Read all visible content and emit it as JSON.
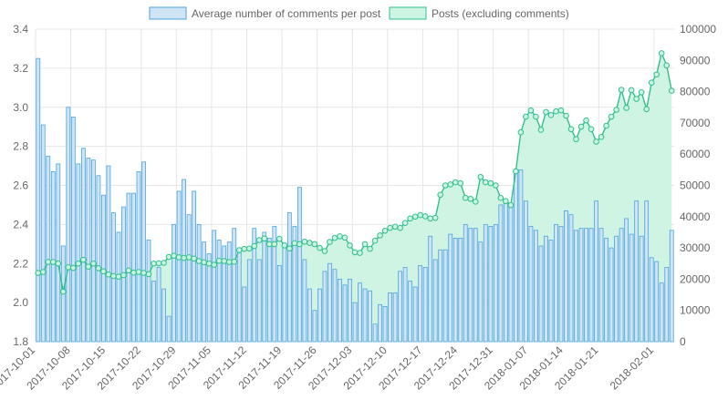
{
  "chart_data": {
    "type": "bar",
    "title": "",
    "xlabel": "",
    "ylabel": "",
    "legend_position": "top",
    "start_date": "2017-10-01",
    "x_tick_labels": [
      "2017-10-01",
      "2017-10-08",
      "2017-10-15",
      "2017-10-22",
      "2017-10-29",
      "2017-11-05",
      "2017-11-12",
      "2017-11-19",
      "2017-11-26",
      "2017-12-03",
      "2017-12-10",
      "2017-12-17",
      "2017-12-24",
      "2017-12-31",
      "2018-01-07",
      "2018-01-14",
      "2018-01-21",
      "2018-02-01"
    ],
    "y_left": {
      "ticks": [
        "1.8",
        "2.0",
        "2.2",
        "2.4",
        "2.6",
        "2.8",
        "3.0",
        "3.2",
        "3.4"
      ],
      "range": [
        1.8,
        3.4
      ]
    },
    "y_right": {
      "ticks": [
        "0",
        "10000",
        "20000",
        "30000",
        "40000",
        "50000",
        "60000",
        "70000",
        "80000",
        "90000",
        "100000"
      ],
      "range": [
        0,
        100000
      ]
    },
    "grid": true,
    "series": [
      {
        "name": "Average number of comments per post",
        "type": "bar",
        "axis": "left",
        "fill": "#cfe5f6",
        "stroke": "#4aa3df",
        "values": [
          3.25,
          2.91,
          2.75,
          2.67,
          2.71,
          2.29,
          3.0,
          2.95,
          2.71,
          2.79,
          2.74,
          2.73,
          2.65,
          2.55,
          2.7,
          2.46,
          2.36,
          2.49,
          2.56,
          2.56,
          2.67,
          2.72,
          2.32,
          2.11,
          2.18,
          2.07,
          1.93,
          2.4,
          2.57,
          2.63,
          2.45,
          2.57,
          2.4,
          2.31,
          2.25,
          2.37,
          2.32,
          2.29,
          2.31,
          2.38,
          2.26,
          2.08,
          2.22,
          2.38,
          2.22,
          2.36,
          2.33,
          2.39,
          2.19,
          2.3,
          2.46,
          2.39,
          2.59,
          2.22,
          2.07,
          1.96,
          2.07,
          2.16,
          2.2,
          2.17,
          2.12,
          2.09,
          2.12,
          2.0,
          2.1,
          2.07,
          2.06,
          1.89,
          1.99,
          1.98,
          2.05,
          2.05,
          2.16,
          2.18,
          2.11,
          2.08,
          2.19,
          2.18,
          2.34,
          2.22,
          2.27,
          2.27,
          2.35,
          2.33,
          2.33,
          2.4,
          2.38,
          2.38,
          2.31,
          2.4,
          2.39,
          2.4,
          2.5,
          2.51,
          2.49,
          2.67,
          2.68,
          2.52,
          2.39,
          2.37,
          2.29,
          2.34,
          2.32,
          2.4,
          2.39,
          2.47,
          2.45,
          2.37,
          2.38,
          2.38,
          2.38,
          2.52,
          2.38,
          2.33,
          2.28,
          2.34,
          2.38,
          2.43,
          2.35,
          2.52,
          2.34,
          2.52,
          2.23,
          2.21,
          2.1,
          2.18,
          2.37
        ]
      },
      {
        "name": "Posts (excluding comments)",
        "type": "area",
        "axis": "right",
        "fill": "#cdf3e2",
        "stroke": "#2fc08c",
        "values": [
          22000,
          22300,
          25500,
          25500,
          25000,
          16000,
          23800,
          23600,
          25000,
          26200,
          24000,
          25000,
          23500,
          22500,
          21500,
          21000,
          20800,
          21300,
          22800,
          22100,
          22300,
          22000,
          21600,
          25000,
          25100,
          25200,
          27100,
          27500,
          27000,
          26800,
          27000,
          26600,
          25800,
          25400,
          25000,
          24600,
          25900,
          25800,
          25500,
          25600,
          29300,
          29700,
          29800,
          30600,
          32500,
          33000,
          31200,
          31200,
          32900,
          30800,
          29800,
          31500,
          31200,
          32000,
          31600,
          31200,
          30000,
          29000,
          31900,
          33200,
          33700,
          33300,
          30800,
          28600,
          28400,
          31200,
          29700,
          32300,
          34000,
          35500,
          36400,
          36800,
          36400,
          38000,
          39400,
          40000,
          40500,
          40100,
          39400,
          39600,
          47000,
          50000,
          50300,
          51000,
          50700,
          46000,
          45700,
          44800,
          52700,
          51000,
          50700,
          50000,
          46000,
          45000,
          43700,
          54500,
          67000,
          72000,
          74000,
          72000,
          67800,
          73500,
          72500,
          73700,
          74000,
          72300,
          68000,
          64800,
          68800,
          70800,
          68000,
          64000,
          65500,
          69100,
          72000,
          74200,
          80600,
          74800,
          80500,
          77700,
          79800,
          74400,
          82900,
          85500,
          92300,
          88400,
          80300
        ]
      }
    ]
  }
}
